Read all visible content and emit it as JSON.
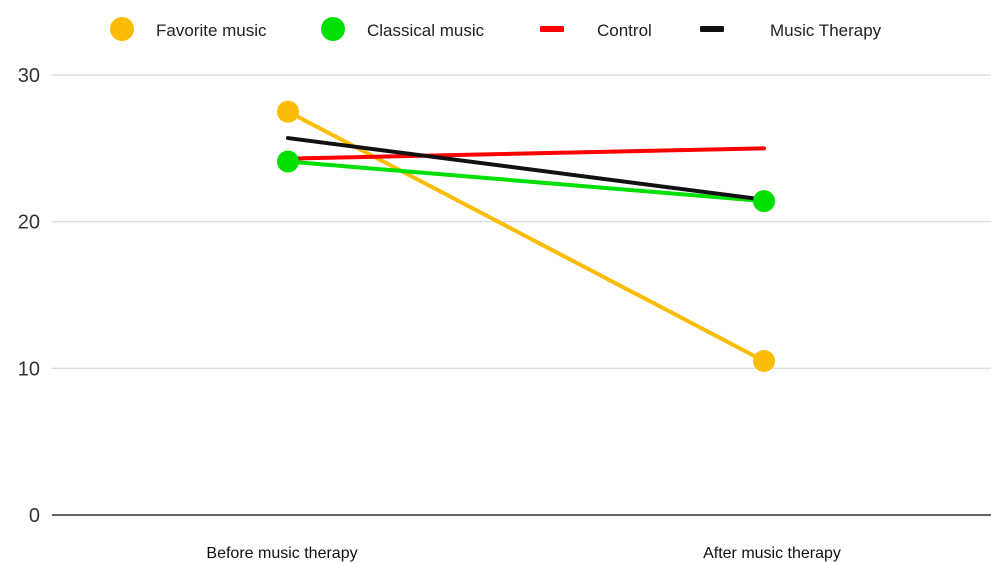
{
  "chart_data": {
    "type": "line",
    "categories": [
      "Before music therapy",
      "After music therapy"
    ],
    "ylim": [
      0,
      30
    ],
    "yticks": [
      0,
      10,
      20,
      30
    ],
    "grid": true,
    "legend_position": "top",
    "series": [
      {
        "name": "Favorite music",
        "values": [
          27.5,
          10.5
        ],
        "color": "#FBBC04",
        "marker": "circle"
      },
      {
        "name": "Classical music",
        "values": [
          24.1,
          21.4
        ],
        "color": "#00E000",
        "marker": "circle"
      },
      {
        "name": "Control",
        "values": [
          24.3,
          25.0
        ],
        "color": "#FF0000",
        "marker": "none"
      },
      {
        "name": "Music Therapy",
        "values": [
          25.7,
          21.5
        ],
        "color": "#111111",
        "marker": "none"
      }
    ]
  }
}
